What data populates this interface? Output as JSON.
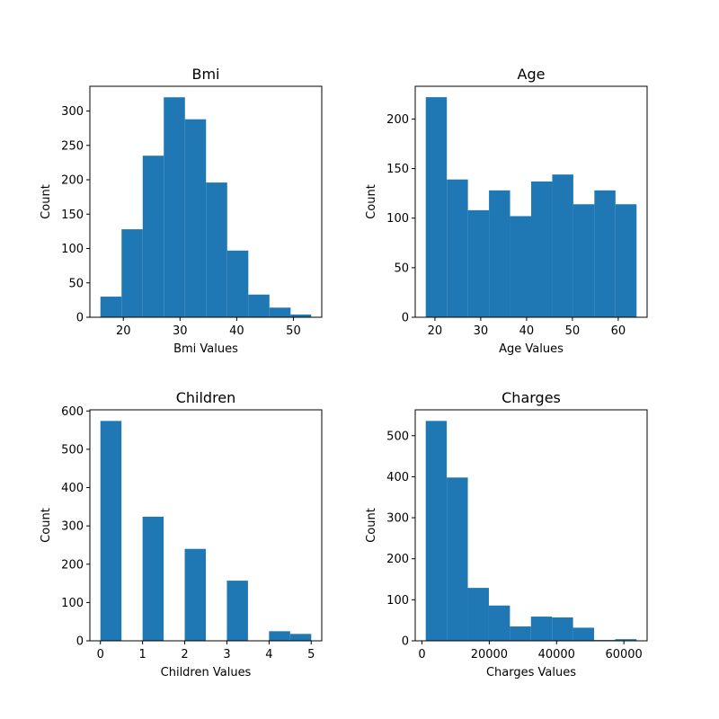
{
  "figure": {
    "background": "#ffffff",
    "bar_color": "#1f77b4",
    "edge_color": "#000000"
  },
  "chart_data": [
    {
      "type": "bar",
      "title": "Bmi",
      "xlabel": "Bmi Values",
      "ylabel": "Count",
      "bins": [
        {
          "x0": 15.96,
          "x1": 19.69,
          "value": 30
        },
        {
          "x0": 19.69,
          "x1": 23.42,
          "value": 128
        },
        {
          "x0": 23.42,
          "x1": 27.14,
          "value": 235
        },
        {
          "x0": 27.14,
          "x1": 30.87,
          "value": 320
        },
        {
          "x0": 30.87,
          "x1": 34.59,
          "value": 288
        },
        {
          "x0": 34.59,
          "x1": 38.32,
          "value": 196
        },
        {
          "x0": 38.32,
          "x1": 42.05,
          "value": 97
        },
        {
          "x0": 42.05,
          "x1": 45.77,
          "value": 33
        },
        {
          "x0": 45.77,
          "x1": 49.5,
          "value": 14
        },
        {
          "x0": 49.5,
          "x1": 53.13,
          "value": 4
        }
      ],
      "xlim": [
        14.1,
        55.0
      ],
      "ylim": [
        0,
        336
      ],
      "xticks": [
        20,
        30,
        40,
        50
      ],
      "xtick_labels": [
        "20",
        "30",
        "40",
        "50"
      ],
      "yticks": [
        0,
        50,
        100,
        150,
        200,
        250,
        300
      ],
      "ytick_labels": [
        "0",
        "50",
        "100",
        "150",
        "200",
        "250",
        "300"
      ],
      "grid": false
    },
    {
      "type": "bar",
      "title": "Age",
      "xlabel": "Age Values",
      "ylabel": "Count",
      "bins": [
        {
          "x0": 18,
          "x1": 22.6,
          "value": 222
        },
        {
          "x0": 22.6,
          "x1": 27.2,
          "value": 139
        },
        {
          "x0": 27.2,
          "x1": 31.8,
          "value": 108
        },
        {
          "x0": 31.8,
          "x1": 36.4,
          "value": 128
        },
        {
          "x0": 36.4,
          "x1": 41.0,
          "value": 102
        },
        {
          "x0": 41.0,
          "x1": 45.6,
          "value": 137
        },
        {
          "x0": 45.6,
          "x1": 50.2,
          "value": 144
        },
        {
          "x0": 50.2,
          "x1": 54.8,
          "value": 114
        },
        {
          "x0": 54.8,
          "x1": 59.4,
          "value": 128
        },
        {
          "x0": 59.4,
          "x1": 64.0,
          "value": 114
        }
      ],
      "xlim": [
        15.7,
        66.3
      ],
      "ylim": [
        0,
        233
      ],
      "xticks": [
        20,
        30,
        40,
        50,
        60
      ],
      "xtick_labels": [
        "20",
        "30",
        "40",
        "50",
        "60"
      ],
      "yticks": [
        0,
        50,
        100,
        150,
        200
      ],
      "ytick_labels": [
        "0",
        "50",
        "100",
        "150",
        "200"
      ],
      "grid": false
    },
    {
      "type": "bar",
      "title": "Children",
      "xlabel": "Children Values",
      "ylabel": "Count",
      "bins": [
        {
          "x0": 0.0,
          "x1": 0.5,
          "value": 574
        },
        {
          "x0": 1.0,
          "x1": 1.5,
          "value": 324
        },
        {
          "x0": 2.0,
          "x1": 2.5,
          "value": 240
        },
        {
          "x0": 3.0,
          "x1": 3.5,
          "value": 157
        },
        {
          "x0": 4.0,
          "x1": 4.5,
          "value": 25
        },
        {
          "x0": 4.5,
          "x1": 5.0,
          "value": 18
        }
      ],
      "xlim": [
        -0.25,
        5.25
      ],
      "ylim": [
        0,
        603
      ],
      "xticks": [
        0,
        1,
        2,
        3,
        4,
        5
      ],
      "xtick_labels": [
        "0",
        "1",
        "2",
        "3",
        "4",
        "5"
      ],
      "yticks": [
        0,
        100,
        200,
        300,
        400,
        500,
        600
      ],
      "ytick_labels": [
        "0",
        "100",
        "200",
        "300",
        "400",
        "500",
        "600"
      ],
      "grid": false
    },
    {
      "type": "bar",
      "title": "Charges",
      "xlabel": "Charges Values",
      "ylabel": "Count",
      "bins": [
        {
          "x0": 1122,
          "x1": 7376,
          "value": 536
        },
        {
          "x0": 7376,
          "x1": 13630,
          "value": 398
        },
        {
          "x0": 13630,
          "x1": 19884,
          "value": 129
        },
        {
          "x0": 19884,
          "x1": 26138,
          "value": 86
        },
        {
          "x0": 26138,
          "x1": 32392,
          "value": 35
        },
        {
          "x0": 32392,
          "x1": 38646,
          "value": 59
        },
        {
          "x0": 38646,
          "x1": 44900,
          "value": 57
        },
        {
          "x0": 44900,
          "x1": 51154,
          "value": 32
        },
        {
          "x0": 51154,
          "x1": 57408,
          "value": 2
        },
        {
          "x0": 57408,
          "x1": 63770,
          "value": 4
        }
      ],
      "xlim": [
        -2000,
        66900
      ],
      "ylim": [
        0,
        563
      ],
      "xticks": [
        0,
        20000,
        40000,
        60000
      ],
      "xtick_labels": [
        "0",
        "20000",
        "40000",
        "60000"
      ],
      "yticks": [
        0,
        100,
        200,
        300,
        400,
        500
      ],
      "ytick_labels": [
        "0",
        "100",
        "200",
        "300",
        "400",
        "500"
      ],
      "grid": false
    }
  ]
}
